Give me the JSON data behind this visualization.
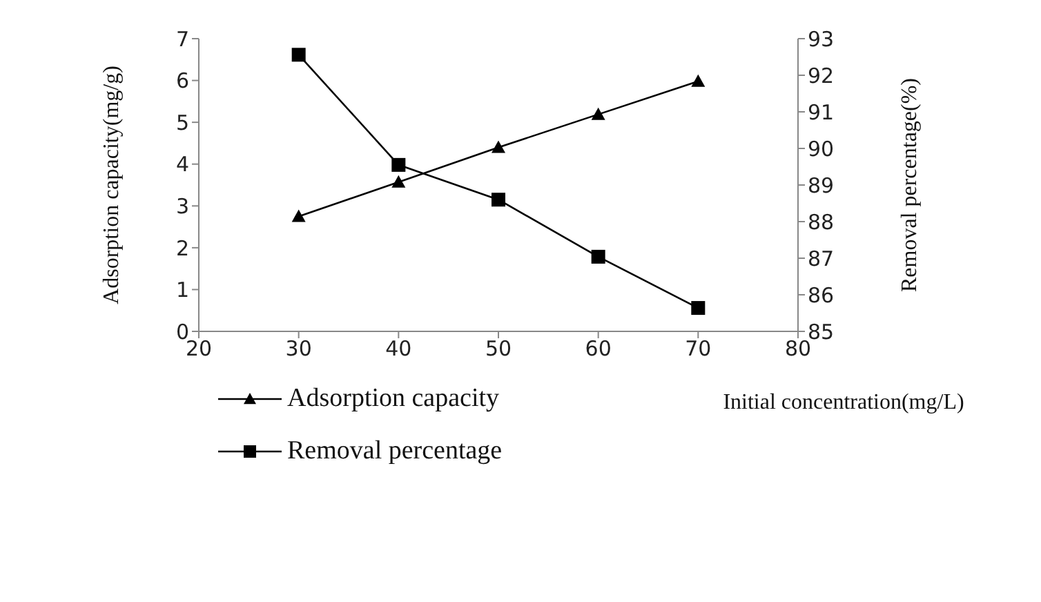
{
  "chart_data": {
    "type": "line",
    "xlabel": "Initial concentration(mg/L)",
    "ylabel": "Adsorption capacity(mg/g)",
    "y2label": "Removal percentage(%)",
    "x": [
      30,
      40,
      50,
      60,
      70
    ],
    "series": [
      {
        "name": "Adsorption capacity",
        "color": "#000000",
        "marker": "triangle",
        "values": [
          2.75,
          3.57,
          4.4,
          5.19,
          5.98
        ]
      },
      {
        "name": "Removal percentage",
        "color": "#000000",
        "marker": "square",
        "axis": "y2",
        "values": [
          92.56,
          89.55,
          88.6,
          87.04,
          85.64
        ]
      }
    ],
    "xlim": [
      20,
      80
    ],
    "xticks": [
      20,
      30,
      40,
      50,
      60,
      70,
      80
    ],
    "ylim": [
      0,
      7
    ],
    "yticks": [
      0,
      1,
      2,
      3,
      4,
      5,
      6,
      7
    ],
    "y2lim": [
      85,
      93
    ],
    "y2ticks": [
      85,
      86,
      87,
      88,
      89,
      90,
      91,
      92,
      93
    ],
    "grid": false,
    "legend": "bottom left",
    "line_style": "solid"
  }
}
